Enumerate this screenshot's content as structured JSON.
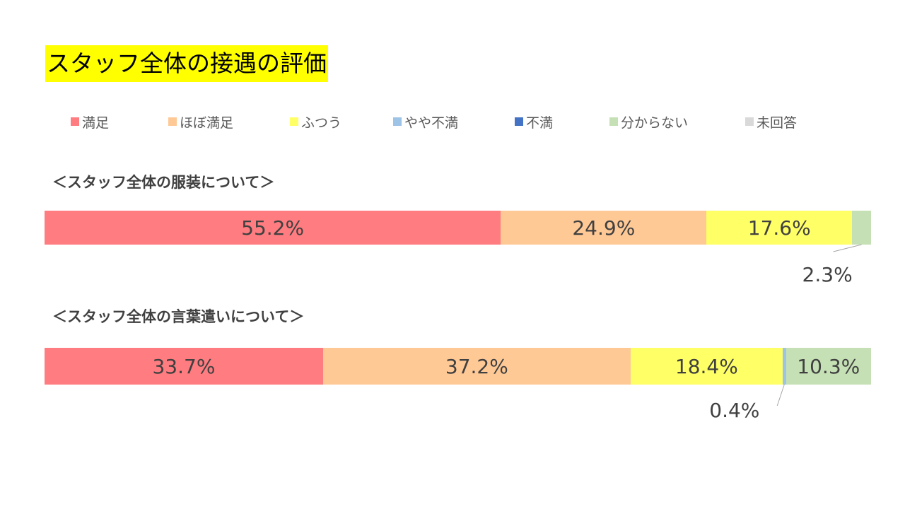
{
  "title": "スタッフ全体の接遇の評価",
  "chart_data": {
    "type": "bar",
    "stacked": true,
    "orientation": "horizontal",
    "legend_position": "top",
    "categories": [
      "満足",
      "ほぼ満足",
      "ふつう",
      "やや不満",
      "不満",
      "分からない",
      "未回答"
    ],
    "colors": [
      "#ff7c80",
      "#ffc996",
      "#ffff66",
      "#9dc3e6",
      "#4472c4",
      "#c5e0b4",
      "#d9d9d9"
    ],
    "charts": [
      {
        "label": "＜スタッフ全体の服装について＞",
        "values": [
          55.2,
          24.9,
          17.6,
          0,
          0,
          2.3,
          0
        ],
        "labels": [
          "55.2%",
          "24.9%",
          "17.6%",
          "",
          "",
          "2.3%",
          ""
        ]
      },
      {
        "label": "＜スタッフ全体の言葉遣いについて＞",
        "values": [
          33.7,
          37.2,
          18.4,
          0.4,
          0,
          10.3,
          0
        ],
        "labels": [
          "33.7%",
          "37.2%",
          "18.4%",
          "0.4%",
          "",
          "10.3%",
          ""
        ]
      }
    ]
  }
}
